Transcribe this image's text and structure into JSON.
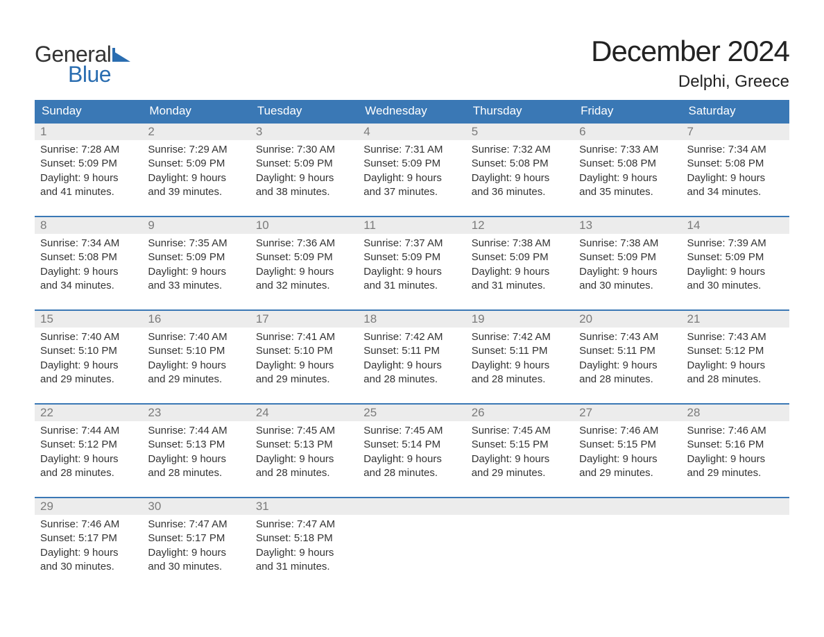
{
  "logo": {
    "text1": "General",
    "text2": "Blue",
    "flag_color": "#2a6db0"
  },
  "title": "December 2024",
  "location": "Delphi, Greece",
  "colors": {
    "header_bg": "#3a78b5",
    "header_text": "#ffffff",
    "daynum_bg": "#ececec",
    "daynum_text": "#7a7a7a",
    "week_border": "#3a78b5",
    "body_text": "#333333",
    "logo_dark": "#333333",
    "logo_blue": "#2a6db0",
    "page_bg": "#ffffff"
  },
  "weekdays": [
    "Sunday",
    "Monday",
    "Tuesday",
    "Wednesday",
    "Thursday",
    "Friday",
    "Saturday"
  ],
  "weeks": [
    [
      {
        "n": "1",
        "sr": "Sunrise: 7:28 AM",
        "ss": "Sunset: 5:09 PM",
        "d1": "Daylight: 9 hours",
        "d2": "and 41 minutes."
      },
      {
        "n": "2",
        "sr": "Sunrise: 7:29 AM",
        "ss": "Sunset: 5:09 PM",
        "d1": "Daylight: 9 hours",
        "d2": "and 39 minutes."
      },
      {
        "n": "3",
        "sr": "Sunrise: 7:30 AM",
        "ss": "Sunset: 5:09 PM",
        "d1": "Daylight: 9 hours",
        "d2": "and 38 minutes."
      },
      {
        "n": "4",
        "sr": "Sunrise: 7:31 AM",
        "ss": "Sunset: 5:09 PM",
        "d1": "Daylight: 9 hours",
        "d2": "and 37 minutes."
      },
      {
        "n": "5",
        "sr": "Sunrise: 7:32 AM",
        "ss": "Sunset: 5:08 PM",
        "d1": "Daylight: 9 hours",
        "d2": "and 36 minutes."
      },
      {
        "n": "6",
        "sr": "Sunrise: 7:33 AM",
        "ss": "Sunset: 5:08 PM",
        "d1": "Daylight: 9 hours",
        "d2": "and 35 minutes."
      },
      {
        "n": "7",
        "sr": "Sunrise: 7:34 AM",
        "ss": "Sunset: 5:08 PM",
        "d1": "Daylight: 9 hours",
        "d2": "and 34 minutes."
      }
    ],
    [
      {
        "n": "8",
        "sr": "Sunrise: 7:34 AM",
        "ss": "Sunset: 5:08 PM",
        "d1": "Daylight: 9 hours",
        "d2": "and 34 minutes."
      },
      {
        "n": "9",
        "sr": "Sunrise: 7:35 AM",
        "ss": "Sunset: 5:09 PM",
        "d1": "Daylight: 9 hours",
        "d2": "and 33 minutes."
      },
      {
        "n": "10",
        "sr": "Sunrise: 7:36 AM",
        "ss": "Sunset: 5:09 PM",
        "d1": "Daylight: 9 hours",
        "d2": "and 32 minutes."
      },
      {
        "n": "11",
        "sr": "Sunrise: 7:37 AM",
        "ss": "Sunset: 5:09 PM",
        "d1": "Daylight: 9 hours",
        "d2": "and 31 minutes."
      },
      {
        "n": "12",
        "sr": "Sunrise: 7:38 AM",
        "ss": "Sunset: 5:09 PM",
        "d1": "Daylight: 9 hours",
        "d2": "and 31 minutes."
      },
      {
        "n": "13",
        "sr": "Sunrise: 7:38 AM",
        "ss": "Sunset: 5:09 PM",
        "d1": "Daylight: 9 hours",
        "d2": "and 30 minutes."
      },
      {
        "n": "14",
        "sr": "Sunrise: 7:39 AM",
        "ss": "Sunset: 5:09 PM",
        "d1": "Daylight: 9 hours",
        "d2": "and 30 minutes."
      }
    ],
    [
      {
        "n": "15",
        "sr": "Sunrise: 7:40 AM",
        "ss": "Sunset: 5:10 PM",
        "d1": "Daylight: 9 hours",
        "d2": "and 29 minutes."
      },
      {
        "n": "16",
        "sr": "Sunrise: 7:40 AM",
        "ss": "Sunset: 5:10 PM",
        "d1": "Daylight: 9 hours",
        "d2": "and 29 minutes."
      },
      {
        "n": "17",
        "sr": "Sunrise: 7:41 AM",
        "ss": "Sunset: 5:10 PM",
        "d1": "Daylight: 9 hours",
        "d2": "and 29 minutes."
      },
      {
        "n": "18",
        "sr": "Sunrise: 7:42 AM",
        "ss": "Sunset: 5:11 PM",
        "d1": "Daylight: 9 hours",
        "d2": "and 28 minutes."
      },
      {
        "n": "19",
        "sr": "Sunrise: 7:42 AM",
        "ss": "Sunset: 5:11 PM",
        "d1": "Daylight: 9 hours",
        "d2": "and 28 minutes."
      },
      {
        "n": "20",
        "sr": "Sunrise: 7:43 AM",
        "ss": "Sunset: 5:11 PM",
        "d1": "Daylight: 9 hours",
        "d2": "and 28 minutes."
      },
      {
        "n": "21",
        "sr": "Sunrise: 7:43 AM",
        "ss": "Sunset: 5:12 PM",
        "d1": "Daylight: 9 hours",
        "d2": "and 28 minutes."
      }
    ],
    [
      {
        "n": "22",
        "sr": "Sunrise: 7:44 AM",
        "ss": "Sunset: 5:12 PM",
        "d1": "Daylight: 9 hours",
        "d2": "and 28 minutes."
      },
      {
        "n": "23",
        "sr": "Sunrise: 7:44 AM",
        "ss": "Sunset: 5:13 PM",
        "d1": "Daylight: 9 hours",
        "d2": "and 28 minutes."
      },
      {
        "n": "24",
        "sr": "Sunrise: 7:45 AM",
        "ss": "Sunset: 5:13 PM",
        "d1": "Daylight: 9 hours",
        "d2": "and 28 minutes."
      },
      {
        "n": "25",
        "sr": "Sunrise: 7:45 AM",
        "ss": "Sunset: 5:14 PM",
        "d1": "Daylight: 9 hours",
        "d2": "and 28 minutes."
      },
      {
        "n": "26",
        "sr": "Sunrise: 7:45 AM",
        "ss": "Sunset: 5:15 PM",
        "d1": "Daylight: 9 hours",
        "d2": "and 29 minutes."
      },
      {
        "n": "27",
        "sr": "Sunrise: 7:46 AM",
        "ss": "Sunset: 5:15 PM",
        "d1": "Daylight: 9 hours",
        "d2": "and 29 minutes."
      },
      {
        "n": "28",
        "sr": "Sunrise: 7:46 AM",
        "ss": "Sunset: 5:16 PM",
        "d1": "Daylight: 9 hours",
        "d2": "and 29 minutes."
      }
    ],
    [
      {
        "n": "29",
        "sr": "Sunrise: 7:46 AM",
        "ss": "Sunset: 5:17 PM",
        "d1": "Daylight: 9 hours",
        "d2": "and 30 minutes."
      },
      {
        "n": "30",
        "sr": "Sunrise: 7:47 AM",
        "ss": "Sunset: 5:17 PM",
        "d1": "Daylight: 9 hours",
        "d2": "and 30 minutes."
      },
      {
        "n": "31",
        "sr": "Sunrise: 7:47 AM",
        "ss": "Sunset: 5:18 PM",
        "d1": "Daylight: 9 hours",
        "d2": "and 31 minutes."
      },
      {
        "empty": true
      },
      {
        "empty": true
      },
      {
        "empty": true
      },
      {
        "empty": true
      }
    ]
  ]
}
